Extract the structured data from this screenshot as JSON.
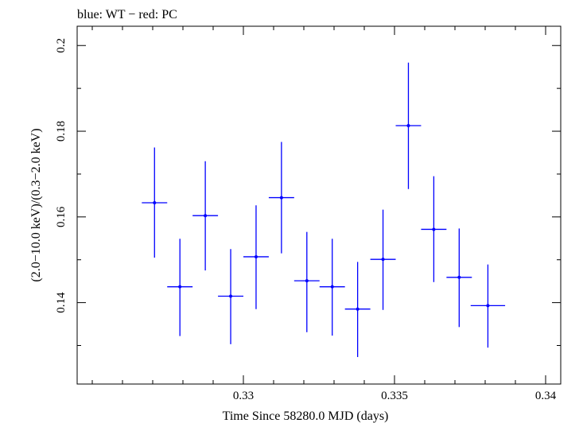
{
  "chart_data": {
    "type": "scatter",
    "title": "blue: WT − red: PC",
    "xlabel": "Time Since 58280.0 MJD (days)",
    "ylabel": "(2.0−10.0 keV)/(0.3−2.0 keV)",
    "xlim": [
      0.3245,
      0.3405
    ],
    "ylim": [
      0.121,
      0.2045
    ],
    "x_ticks": [
      {
        "value": 0.33,
        "label": "0.33"
      },
      {
        "value": 0.335,
        "label": "0.335"
      },
      {
        "value": 0.34,
        "label": "0.34"
      }
    ],
    "y_ticks": [
      {
        "value": 0.14,
        "label": "0.14"
      },
      {
        "value": 0.16,
        "label": "0.16"
      },
      {
        "value": 0.18,
        "label": "0.18"
      },
      {
        "value": 0.2,
        "label": "0.2"
      }
    ],
    "x_minor_ticks": [
      0.325,
      0.326,
      0.327,
      0.328,
      0.329,
      0.331,
      0.332,
      0.333,
      0.334,
      0.336,
      0.337,
      0.338,
      0.339
    ],
    "y_minor_ticks": [
      0.13,
      0.15,
      0.17,
      0.19
    ],
    "grid": false,
    "series": [
      {
        "name": "WT",
        "color": "#0000ff",
        "points": [
          {
            "x": 0.32706,
            "xerr": 0.00042,
            "y": 0.1633,
            "ylo": 0.1505,
            "yhi": 0.1762
          },
          {
            "x": 0.3279,
            "xerr": 0.00042,
            "y": 0.1437,
            "ylo": 0.1322,
            "yhi": 0.1549
          },
          {
            "x": 0.32874,
            "xerr": 0.00042,
            "y": 0.1603,
            "ylo": 0.1475,
            "yhi": 0.173
          },
          {
            "x": 0.32958,
            "xerr": 0.00042,
            "y": 0.1415,
            "ylo": 0.1303,
            "yhi": 0.1525
          },
          {
            "x": 0.33042,
            "xerr": 0.00042,
            "y": 0.1507,
            "ylo": 0.1385,
            "yhi": 0.1627
          },
          {
            "x": 0.33126,
            "xerr": 0.00042,
            "y": 0.1645,
            "ylo": 0.1515,
            "yhi": 0.1775
          },
          {
            "x": 0.3321,
            "xerr": 0.00042,
            "y": 0.1451,
            "ylo": 0.1331,
            "yhi": 0.1565
          },
          {
            "x": 0.33294,
            "xerr": 0.00042,
            "y": 0.1437,
            "ylo": 0.1323,
            "yhi": 0.1549
          },
          {
            "x": 0.33378,
            "xerr": 0.00042,
            "y": 0.1385,
            "ylo": 0.1273,
            "yhi": 0.1495
          },
          {
            "x": 0.33462,
            "xerr": 0.00042,
            "y": 0.1501,
            "ylo": 0.1383,
            "yhi": 0.1617
          },
          {
            "x": 0.33546,
            "xerr": 0.00042,
            "y": 0.1813,
            "ylo": 0.1665,
            "yhi": 0.196
          },
          {
            "x": 0.3363,
            "xerr": 0.00042,
            "y": 0.1571,
            "ylo": 0.1448,
            "yhi": 0.1695
          },
          {
            "x": 0.33714,
            "xerr": 0.00042,
            "y": 0.1459,
            "ylo": 0.1343,
            "yhi": 0.1573
          },
          {
            "x": 0.33809,
            "xerr": 0.00057,
            "y": 0.1393,
            "ylo": 0.1295,
            "yhi": 0.1489
          }
        ]
      }
    ]
  }
}
